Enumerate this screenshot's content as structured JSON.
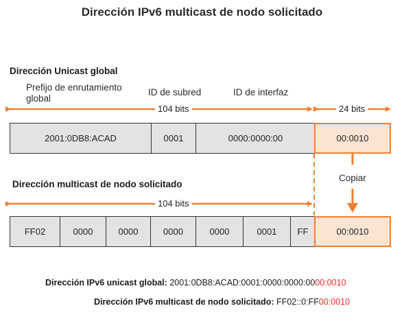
{
  "title": "Dirección IPv6 multicast de nodo solicitado",
  "unicast": {
    "heading": "Dirección Unicast global",
    "label_prefix": "Prefijo de enrutamiento global",
    "label_subnet": "ID de subred",
    "label_interface": "ID de interfaz",
    "bits_main": "104 bits",
    "bits_copy": "24 bits",
    "fields": [
      "2001:0DB8:ACAD",
      "0001",
      "0000:0000:00",
      "00:0010"
    ]
  },
  "copy_label": "Copiar",
  "multicast": {
    "heading": "Dirección multicast de nodo solicitado",
    "bits_main": "104 bits",
    "fields": [
      "FF02",
      "0000",
      "0000",
      "0000",
      "0000",
      "0001",
      "FF",
      "00:0010"
    ]
  },
  "summary": {
    "unicast_label": "Dirección IPv6 unicast global:",
    "unicast_value_black": "2001:0DB8:ACAD:0001:0000:0000:00",
    "unicast_value_red": "00:0010",
    "multicast_label": "Dirección IPv6 multicast de nodo solicitado:",
    "multicast_value_black": "FF02::0:FF",
    "multicast_value_red": "00:0010"
  },
  "colors": {
    "accent": "#ee8031",
    "highlight_fill": "#fbe4d3",
    "field_fill": "#e3e3e3",
    "red_text": "#e8282a"
  }
}
